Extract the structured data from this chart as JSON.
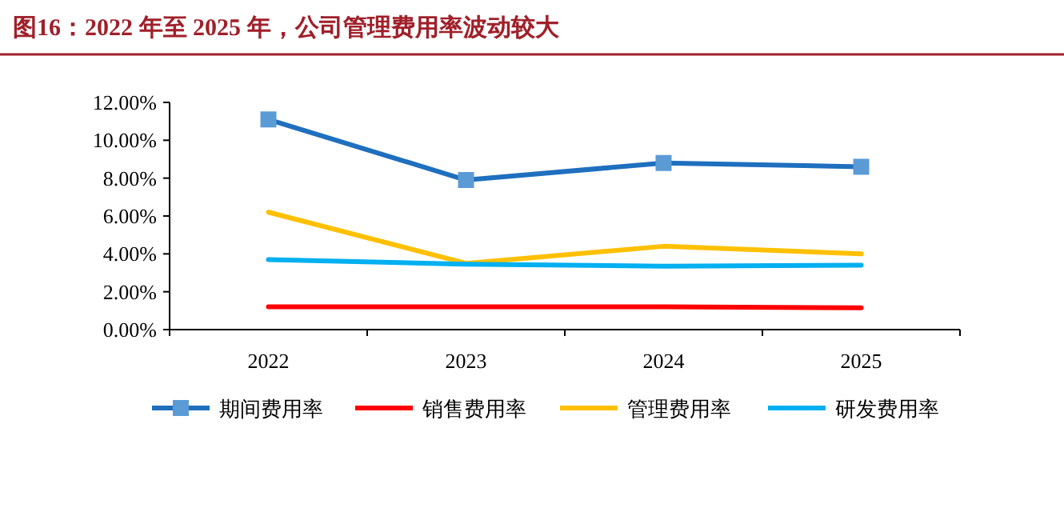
{
  "chart_data": {
    "type": "line",
    "title": "图16：2022 年至 2025 年，公司管理费用率波动较大",
    "categories": [
      "2022",
      "2023",
      "2024",
      "2025"
    ],
    "series": [
      {
        "name": "期间费用率",
        "color": "#1f6fbf",
        "marker": "square",
        "values": [
          11.1,
          7.9,
          8.8,
          8.6
        ]
      },
      {
        "name": "销售费用率",
        "color": "#ff0000",
        "marker": "none",
        "values": [
          1.2,
          1.2,
          1.2,
          1.15
        ]
      },
      {
        "name": "管理费用率",
        "color": "#ffc000",
        "marker": "none",
        "values": [
          6.2,
          3.5,
          4.4,
          4.0
        ]
      },
      {
        "name": "研发费用率",
        "color": "#00b0f0",
        "marker": "none",
        "values": [
          3.7,
          3.45,
          3.35,
          3.4
        ]
      }
    ],
    "ylim": [
      0,
      12
    ],
    "yticks": [
      {
        "value": 0,
        "label": "0.00%"
      },
      {
        "value": 2,
        "label": "2.00%"
      },
      {
        "value": 4,
        "label": "4.00%"
      },
      {
        "value": 6,
        "label": "6.00%"
      },
      {
        "value": 8,
        "label": "8.00%"
      },
      {
        "value": 10,
        "label": "10.00%"
      },
      {
        "value": 12,
        "label": "12.00%"
      }
    ],
    "grid": false,
    "legend": "bottom",
    "line_style": "solid"
  }
}
